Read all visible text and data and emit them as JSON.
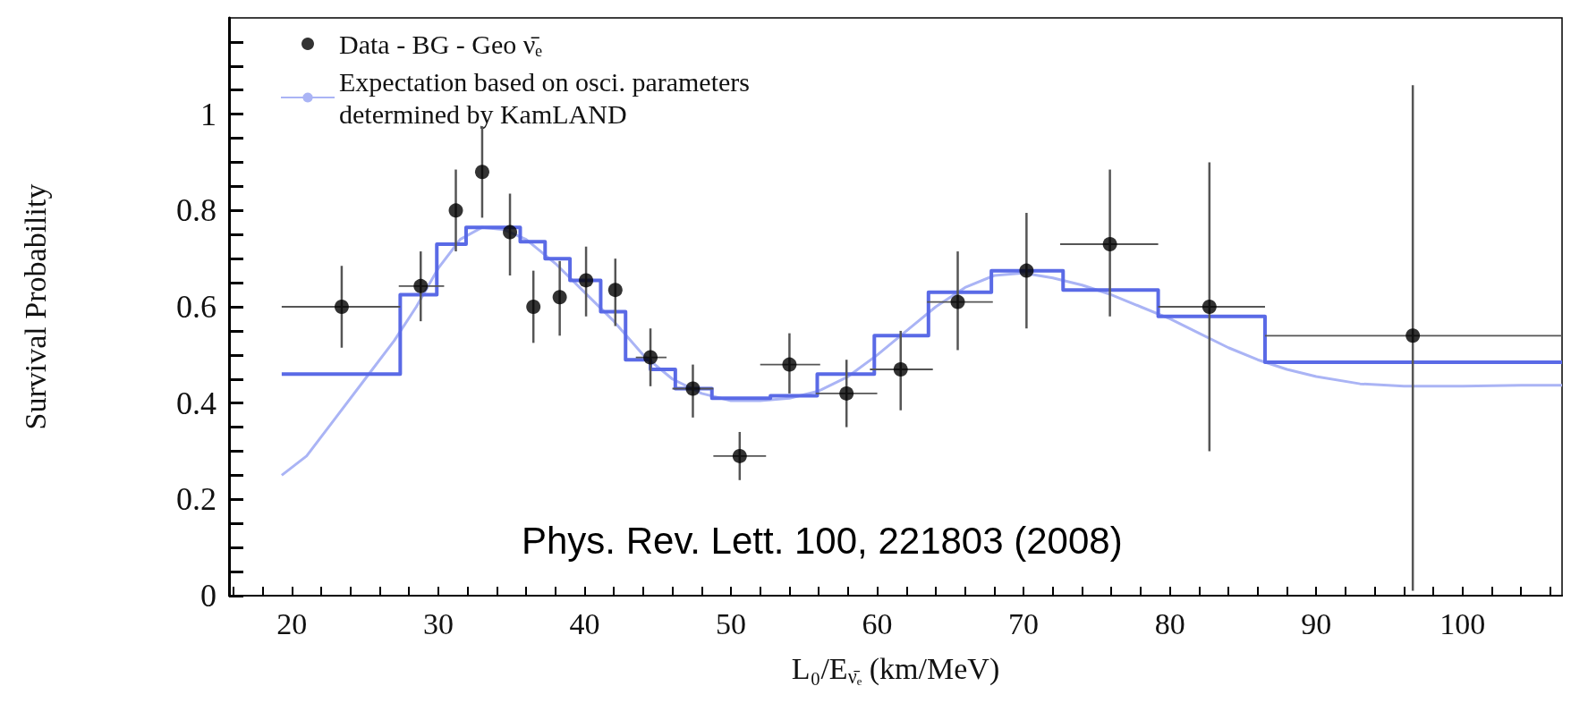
{
  "chart_data": {
    "type": "scatter",
    "ylabel": "Survival Probability",
    "xlabel": "L₀/E$_{ν̄ₑ}$ (km/MeV)",
    "annotations": [
      "Phys. Rev. Lett. 100, 221803 (2008)"
    ],
    "xlim": [
      15.7,
      106.8
    ],
    "xticks": [
      {
        "value": 16,
        "label": null
      },
      {
        "value": 18,
        "label": null
      },
      20,
      {
        "value": 22,
        "label": null
      },
      {
        "value": 24,
        "label": null
      },
      {
        "value": 26,
        "label": null
      },
      {
        "value": 28,
        "label": null
      },
      30,
      {
        "value": 32,
        "label": null
      },
      {
        "value": 34,
        "label": null
      },
      {
        "value": 36,
        "label": null
      },
      {
        "value": 38,
        "label": null
      },
      40,
      {
        "value": 42,
        "label": null
      },
      {
        "value": 44,
        "label": null
      },
      {
        "value": 46,
        "label": null
      },
      {
        "value": 48,
        "label": null
      },
      50,
      {
        "value": 52,
        "label": null
      },
      {
        "value": 54,
        "label": null
      },
      {
        "value": 56,
        "label": null
      },
      {
        "value": 58,
        "label": null
      },
      60,
      {
        "value": 62,
        "label": null
      },
      {
        "value": 64,
        "label": null
      },
      {
        "value": 66,
        "label": null
      },
      {
        "value": 68,
        "label": null
      },
      70,
      {
        "value": 72,
        "label": null
      },
      {
        "value": 74,
        "label": null
      },
      {
        "value": 76,
        "label": null
      },
      {
        "value": 78,
        "label": null
      },
      80,
      {
        "value": 82,
        "label": null
      },
      {
        "value": 84,
        "label": null
      },
      {
        "value": 86,
        "label": null
      },
      {
        "value": 88,
        "label": null
      },
      90,
      {
        "value": 92,
        "label": null
      },
      {
        "value": 94,
        "label": null
      },
      {
        "value": 96,
        "label": null
      },
      {
        "value": 98,
        "label": null
      },
      100,
      {
        "value": 102,
        "label": null
      },
      {
        "value": 104,
        "label": null
      },
      {
        "value": 106,
        "label": null
      }
    ],
    "ylim": [
      0,
      1.2
    ],
    "yticks": [
      0,
      {
        "value": 0.05,
        "label": null
      },
      {
        "value": 0.1,
        "label": null
      },
      {
        "value": 0.15,
        "label": null
      },
      0.2,
      {
        "value": 0.25,
        "label": null
      },
      {
        "value": 0.3,
        "label": null
      },
      {
        "value": 0.35,
        "label": null
      },
      0.4,
      {
        "value": 0.45,
        "label": null
      },
      {
        "value": 0.5,
        "label": null
      },
      {
        "value": 0.55,
        "label": null
      },
      0.6,
      {
        "value": 0.65,
        "label": null
      },
      {
        "value": 0.7,
        "label": null
      },
      {
        "value": 0.75,
        "label": null
      },
      0.8,
      {
        "value": 0.85,
        "label": null
      },
      {
        "value": 0.9,
        "label": null
      },
      {
        "value": 0.95,
        "label": null
      },
      1,
      {
        "value": 1.05,
        "label": null
      },
      {
        "value": 1.1,
        "label": null
      },
      {
        "value": 1.15,
        "label": null
      }
    ],
    "grid": false,
    "legend": "top left",
    "series": [
      {
        "type": "scatter",
        "name": "Data - BG - Geo ν̄ₑ",
        "color": "#000000",
        "marker": "circle",
        "x": [
          23.4,
          28.8,
          31.2,
          33.0,
          34.9,
          36.5,
          38.3,
          40.1,
          42.1,
          44.5,
          47.4,
          50.6,
          54.0,
          57.9,
          61.6,
          65.5,
          70.2,
          75.9,
          82.7,
          96.6
        ],
        "values": [
          0.6,
          0.643,
          0.8,
          0.88,
          0.755,
          0.6,
          0.62,
          0.655,
          0.635,
          0.495,
          0.43,
          0.29,
          0.48,
          0.42,
          0.47,
          0.61,
          0.675,
          0.73,
          0.6,
          0.54
        ],
        "errors": [
          [
            0.515,
            0.685
          ],
          [
            0.57,
            0.715
          ],
          [
            0.715,
            0.885
          ],
          [
            0.785,
            0.975
          ],
          [
            0.665,
            0.835
          ],
          [
            0.525,
            0.675
          ],
          [
            0.54,
            0.695
          ],
          [
            0.58,
            0.725
          ],
          [
            0.56,
            0.7
          ],
          [
            0.435,
            0.555
          ],
          [
            0.37,
            0.48
          ],
          [
            0.24,
            0.34
          ],
          [
            0.42,
            0.545
          ],
          [
            0.35,
            0.49
          ],
          [
            0.385,
            0.55
          ],
          [
            0.51,
            0.715
          ],
          [
            0.555,
            0.795
          ],
          [
            0.58,
            0.885
          ],
          [
            0.3,
            0.9
          ],
          [
            0.01,
            1.06
          ]
        ],
        "xerrors": [
          [
            19.3,
            27.4
          ],
          [
            27.3,
            30.4
          ],
          null,
          null,
          null,
          null,
          null,
          null,
          null,
          [
            43.5,
            45.6
          ],
          [
            46.0,
            48.8
          ],
          [
            48.8,
            52.4
          ],
          [
            52.0,
            56.1
          ],
          [
            55.8,
            60.0
          ],
          [
            59.5,
            63.8
          ],
          [
            63.4,
            67.9
          ],
          null,
          [
            72.5,
            79.2
          ],
          [
            79.2,
            86.5
          ],
          [
            86.5,
            106.8
          ]
        ]
      },
      {
        "type": "line",
        "name": "Expectation based on osci. parameters\ndetermined by KamLAND",
        "color": "#aab4f5",
        "x": [
          19.3,
          21,
          23,
          25,
          27,
          28.5,
          30,
          31.5,
          33,
          34.5,
          36,
          38,
          40,
          42,
          44,
          46,
          48,
          50,
          52,
          54,
          56,
          58,
          60,
          62,
          64,
          66,
          68,
          70,
          72,
          74,
          76,
          78,
          80,
          82,
          84,
          86,
          88,
          90,
          93,
          96,
          100,
          104,
          106.8
        ],
        "values": [
          0.25,
          0.29,
          0.37,
          0.45,
          0.53,
          0.6,
          0.68,
          0.74,
          0.765,
          0.76,
          0.74,
          0.69,
          0.63,
          0.57,
          0.5,
          0.45,
          0.42,
          0.405,
          0.405,
          0.41,
          0.425,
          0.455,
          0.5,
          0.55,
          0.6,
          0.64,
          0.665,
          0.67,
          0.66,
          0.645,
          0.625,
          0.6,
          0.575,
          0.545,
          0.515,
          0.49,
          0.47,
          0.455,
          0.44,
          0.435,
          0.435,
          0.437,
          0.437
        ]
      },
      {
        "type": "step",
        "color": "#5a6ae6",
        "x": [
          19.3,
          27.4,
          29.9,
          31.9,
          35.6,
          37.3,
          39.0,
          41.1,
          42.8,
          44.5,
          46.2,
          48.7,
          52.7,
          55.9,
          59.8,
          63.5,
          67.8,
          72.7,
          79.2,
          86.5,
          106.8
        ],
        "values": [
          0.46,
          0.625,
          0.73,
          0.765,
          0.735,
          0.7,
          0.655,
          0.59,
          0.49,
          0.47,
          0.43,
          0.41,
          0.415,
          0.46,
          0.54,
          0.63,
          0.675,
          0.635,
          0.58,
          0.485,
          0.485
        ]
      }
    ]
  }
}
